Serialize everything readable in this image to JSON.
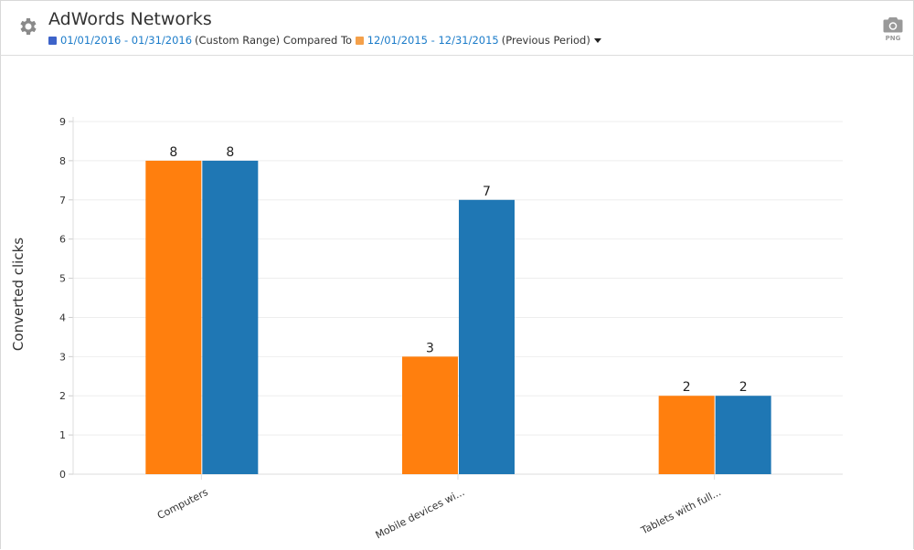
{
  "header": {
    "title": "AdWords Networks",
    "current_range": "01/01/2016 - 01/31/2016",
    "current_range_type": "(Custom Range)",
    "compared_to": "Compared To",
    "previous_range": "12/01/2015 - 12/31/2015",
    "previous_range_type": "(Previous Period)",
    "current_color": "#3d63c9",
    "previous_color": "#f4a04a",
    "export_label": "PNG",
    "icons": [
      "gear-icon",
      "camera-icon",
      "caret-down-icon"
    ]
  },
  "chart_data": {
    "type": "bar",
    "title": "",
    "xlabel": "",
    "ylabel": "Converted clicks",
    "ylim": [
      0,
      9
    ],
    "yticks": [
      0,
      1,
      2,
      3,
      4,
      5,
      6,
      7,
      8,
      9
    ],
    "grid": true,
    "categories": [
      "Computers",
      "Mobile devices wi...",
      "Tablets with full..."
    ],
    "series": [
      {
        "period": "12/01/2015 - 12/31/2015",
        "color": "#ff7f0e",
        "values": [
          8,
          3,
          2
        ]
      },
      {
        "period": "01/01/2016 - 01/31/2016",
        "color": "#1f77b4",
        "values": [
          8,
          7,
          2
        ]
      }
    ]
  }
}
